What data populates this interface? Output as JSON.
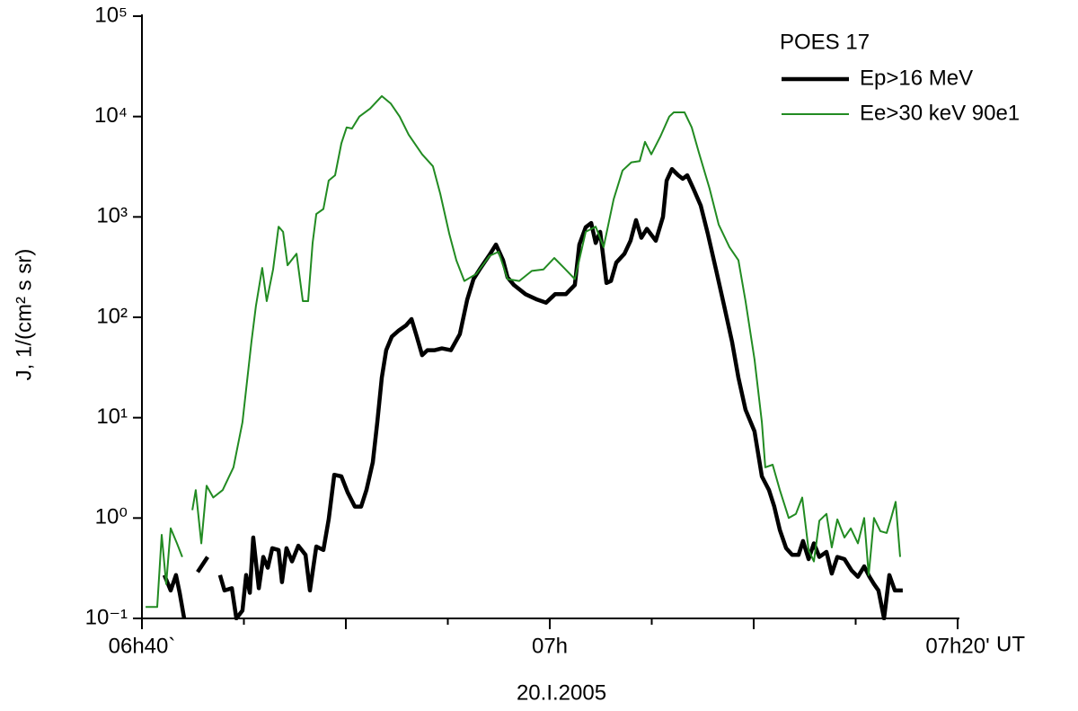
{
  "chart_data": {
    "type": "line",
    "y_label": "J, 1/(cm² s sr)",
    "x_label": "UT",
    "x_sublabel": "20.I.2005",
    "legend_title": "POES 17",
    "log_y": true,
    "ylim": [
      0.1,
      100000
    ],
    "yticks": [
      {
        "value": 0.1,
        "label": "10⁻¹"
      },
      {
        "value": 1,
        "label": "10⁰"
      },
      {
        "value": 10,
        "label": "10¹"
      },
      {
        "value": 100,
        "label": "10²"
      },
      {
        "value": 1000,
        "label": "10³"
      },
      {
        "value": 10000,
        "label": "10⁴"
      },
      {
        "value": 100000,
        "label": "10⁵"
      }
    ],
    "xlim": [
      0,
      40
    ],
    "xticks": [
      {
        "value": 0,
        "label": "06h40`"
      },
      {
        "value": 20,
        "label": "07h"
      },
      {
        "value": 40,
        "label": "07h20'"
      }
    ],
    "xminorticks": [
      5,
      10,
      15,
      25,
      30,
      35
    ],
    "series": [
      {
        "name": "Ep>16 MeV",
        "color": "#000000",
        "x": [
          1.1,
          1.41,
          1.67,
          1.85,
          2.07,
          2.3,
          2.73,
          3.22,
          3.5,
          3.83,
          4.05,
          4.41,
          4.63,
          4.93,
          5.11,
          5.29,
          5.46,
          5.73,
          5.95,
          6.17,
          6.39,
          6.7,
          6.87,
          7.09,
          7.36,
          7.67,
          8.02,
          8.24,
          8.55,
          8.9,
          9.16,
          9.43,
          9.78,
          10.09,
          10.44,
          10.75,
          11.01,
          11.32,
          11.54,
          11.76,
          11.98,
          12.25,
          12.6,
          12.95,
          13.22,
          13.48,
          13.74,
          14.0,
          14.36,
          14.71,
          15.15,
          15.59,
          15.95,
          16.26,
          16.61,
          17.05,
          17.36,
          17.71,
          17.93,
          18.24,
          18.81,
          19.38,
          19.82,
          20.26,
          20.79,
          21.23,
          21.45,
          21.76,
          22.03,
          22.25,
          22.47,
          22.78,
          23.0,
          23.26,
          23.66,
          23.96,
          24.23,
          24.49,
          24.76,
          25.2,
          25.55,
          25.73,
          25.99,
          26.3,
          26.52,
          26.74,
          27.05,
          27.4,
          27.75,
          28.15,
          28.55,
          28.94,
          29.25,
          29.6,
          30.04,
          30.4,
          30.75,
          31.01,
          31.28,
          31.59,
          31.89,
          32.2,
          32.42,
          32.69,
          32.95,
          33.22,
          33.57,
          33.83,
          34.1,
          34.45,
          34.8,
          35.11,
          35.42,
          35.68,
          35.9,
          36.12,
          36.39,
          36.65,
          36.92,
          37.31
        ],
        "values": [
          0.27,
          0.19,
          0.27,
          0.18,
          0.1,
          null,
          0.29,
          0.41,
          null,
          0.27,
          0.19,
          0.2,
          0.1,
          0.12,
          0.27,
          0.18,
          0.64,
          0.2,
          0.41,
          0.32,
          0.5,
          0.48,
          0.23,
          0.5,
          0.37,
          0.53,
          0.43,
          0.19,
          0.52,
          0.48,
          0.97,
          2.7,
          2.6,
          1.8,
          1.3,
          1.3,
          1.9,
          3.6,
          9.0,
          25,
          47,
          64,
          74,
          83,
          96,
          64,
          42,
          47,
          47,
          49,
          47,
          68,
          150,
          240,
          310,
          420,
          530,
          370,
          250,
          210,
          170,
          150,
          140,
          170,
          170,
          210,
          530,
          790,
          870,
          550,
          710,
          220,
          230,
          350,
          430,
          580,
          930,
          620,
          760,
          580,
          1000,
          2300,
          3000,
          2600,
          2400,
          2600,
          1900,
          1300,
          680,
          300,
          130,
          57,
          25,
          12,
          7.3,
          2.6,
          1.9,
          1.3,
          0.76,
          0.5,
          0.43,
          0.43,
          0.59,
          0.39,
          0.56,
          0.41,
          0.46,
          0.28,
          0.41,
          0.39,
          0.3,
          0.26,
          0.33,
          0.26,
          0.22,
          0.19,
          0.1,
          0.27,
          0.19,
          0.19
        ]
      },
      {
        "name": "Ee>30 keV 90e1",
        "color": "#228b22",
        "x": [
          0.18,
          0.75,
          0.97,
          1.19,
          1.41,
          1.72,
          1.98,
          2.2,
          2.47,
          2.64,
          2.91,
          3.17,
          3.5,
          3.96,
          4.49,
          4.93,
          5.37,
          5.59,
          5.9,
          6.12,
          6.43,
          6.7,
          6.92,
          7.14,
          7.58,
          7.89,
          8.15,
          8.37,
          8.55,
          8.9,
          9.16,
          9.47,
          9.78,
          10.04,
          10.3,
          10.66,
          11.19,
          11.76,
          12.2,
          12.64,
          13.08,
          13.74,
          14.27,
          14.63,
          15.07,
          15.42,
          15.81,
          16.39,
          17.05,
          17.49,
          17.93,
          18.5,
          19.12,
          19.69,
          20.22,
          20.7,
          21.23,
          21.76,
          22.25,
          22.64,
          23.13,
          23.57,
          24.0,
          24.41,
          24.67,
          24.98,
          25.42,
          25.86,
          26.08,
          26.61,
          26.96,
          27.31,
          27.84,
          28.28,
          28.81,
          29.25,
          29.6,
          30.04,
          30.4,
          30.57,
          30.93,
          31.28,
          31.72,
          32.07,
          32.38,
          32.69,
          32.95,
          33.22,
          33.57,
          33.83,
          34.1,
          34.45,
          34.76,
          35.11,
          35.42,
          35.64,
          35.9,
          36.21,
          36.52,
          36.74,
          36.96,
          37.18
        ],
        "values": [
          0.13,
          0.13,
          0.68,
          0.22,
          0.79,
          0.56,
          0.41,
          null,
          1.2,
          1.9,
          0.56,
          2.1,
          1.6,
          1.9,
          3.2,
          9.0,
          57,
          130,
          310,
          145,
          300,
          800,
          710,
          330,
          430,
          145,
          145,
          550,
          1070,
          1200,
          2300,
          2600,
          5400,
          7800,
          7600,
          10000,
          12000,
          16000,
          13500,
          10000,
          6600,
          4200,
          3200,
          1700,
          680,
          370,
          230,
          270,
          410,
          450,
          240,
          230,
          290,
          300,
          390,
          310,
          240,
          710,
          800,
          500,
          1500,
          2900,
          3500,
          3600,
          5600,
          4200,
          6300,
          10000,
          11000,
          11000,
          7800,
          4400,
          1900,
          840,
          500,
          370,
          145,
          38,
          9.0,
          3.2,
          3.4,
          1.9,
          1.0,
          1.1,
          1.6,
          0.48,
          0.37,
          0.94,
          1.1,
          0.51,
          0.97,
          0.64,
          0.79,
          0.56,
          1.0,
          0.27,
          1.0,
          0.74,
          0.71,
          1.0,
          1.45,
          0.41
        ]
      }
    ]
  }
}
